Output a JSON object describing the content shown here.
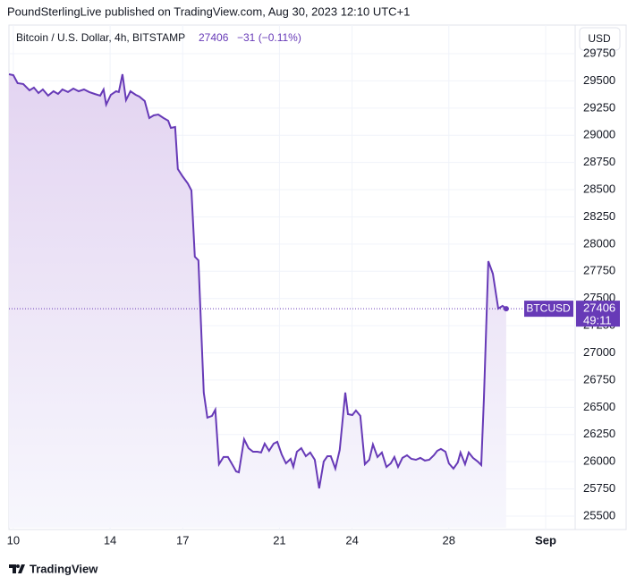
{
  "header": "PoundSterlingLive published on TradingView.com, Aug 30, 2023 12:10 UTC+1",
  "chart_data": {
    "type": "area",
    "title": "Bitcoin / U.S. Dollar, 4h, BITSTAMP",
    "legend_price": 27406,
    "legend_change": "−31 (−0.11%)",
    "currency": "USD",
    "symbol": "BTCUSD",
    "last_price": 27406,
    "countdown": "49:11",
    "color": "#673ab7",
    "grid": true,
    "x": [
      9.82,
      10,
      10.18,
      10.41,
      10.67,
      10.85,
      11.04,
      11.22,
      11.44,
      11.66,
      11.85,
      12.03,
      12.26,
      12.48,
      12.7,
      12.92,
      13.14,
      13.36,
      13.59,
      13.73,
      13.84,
      14.03,
      14.25,
      14.36,
      14.51,
      14.66,
      14.84,
      15.06,
      15.21,
      15.43,
      15.62,
      15.8,
      15.99,
      16.21,
      16.4,
      16.51,
      16.69,
      16.8,
      16.99,
      17.21,
      17.36,
      17.5,
      17.65,
      17.87,
      18.02,
      18.21,
      18.35,
      18.5,
      18.69,
      18.87,
      19.06,
      19.21,
      19.32,
      19.54,
      19.72,
      19.91,
      20.09,
      20.24,
      20.39,
      20.57,
      20.76,
      20.91,
      21.09,
      21.27,
      21.46,
      21.57,
      21.72,
      21.9,
      22.09,
      22.27,
      22.46,
      22.64,
      22.83,
      22.98,
      23.12,
      23.31,
      23.49,
      23.72,
      23.83,
      24.01,
      24.16,
      24.34,
      24.53,
      24.71,
      24.86,
      25.05,
      25.23,
      25.42,
      25.6,
      25.75,
      25.9,
      26.08,
      26.27,
      26.45,
      26.64,
      26.82,
      27.01,
      27.19,
      27.38,
      27.52,
      27.67,
      27.86,
      28,
      28.19,
      28.37,
      28.48,
      28.67,
      28.82,
      29,
      29.19,
      29.34,
      29.45,
      29.63,
      29.82,
      30.04,
      30.22,
      30.37
    ],
    "values": [
      29561,
      29553,
      29479,
      29471,
      29413,
      29438,
      29388,
      29421,
      29364,
      29405,
      29380,
      29421,
      29397,
      29429,
      29405,
      29421,
      29397,
      29380,
      29364,
      29421,
      29281,
      29372,
      29405,
      29397,
      29561,
      29323,
      29405,
      29372,
      29355,
      29314,
      29158,
      29183,
      29191,
      29158,
      29134,
      29068,
      29076,
      28690,
      28624,
      28558,
      28493,
      27884,
      27851,
      26635,
      26405,
      26421,
      26478,
      25977,
      26043,
      26043,
      25969,
      25911,
      25903,
      26207,
      26125,
      26092,
      26092,
      26084,
      26166,
      26100,
      26166,
      26183,
      26067,
      25985,
      26026,
      25952,
      26092,
      26125,
      26051,
      26084,
      26018,
      25755,
      26002,
      26051,
      26051,
      25936,
      26109,
      26635,
      26437,
      26429,
      26470,
      26421,
      25977,
      26018,
      26158,
      26043,
      26084,
      25952,
      25985,
      26043,
      25952,
      26035,
      26059,
      26026,
      26018,
      26035,
      26010,
      26018,
      26059,
      26100,
      26117,
      26092,
      25985,
      25936,
      25994,
      26084,
      25977,
      26084,
      26035,
      26002,
      25969,
      26585,
      27843,
      27728,
      27407,
      27432,
      27406
    ],
    "xlim": [
      9.82,
      33.22
    ],
    "xticks": [
      10,
      14,
      17,
      21,
      24,
      28,
      {
        "value": 32,
        "label": "Sep"
      }
    ],
    "ylim": [
      25393,
      30013
    ],
    "yticks": [
      25500,
      25750,
      26000,
      26250,
      26500,
      26750,
      27000,
      27250,
      27500,
      27750,
      28000,
      28250,
      28500,
      28750,
      29000,
      29250,
      29500,
      29750
    ]
  },
  "footer": "TradingView"
}
